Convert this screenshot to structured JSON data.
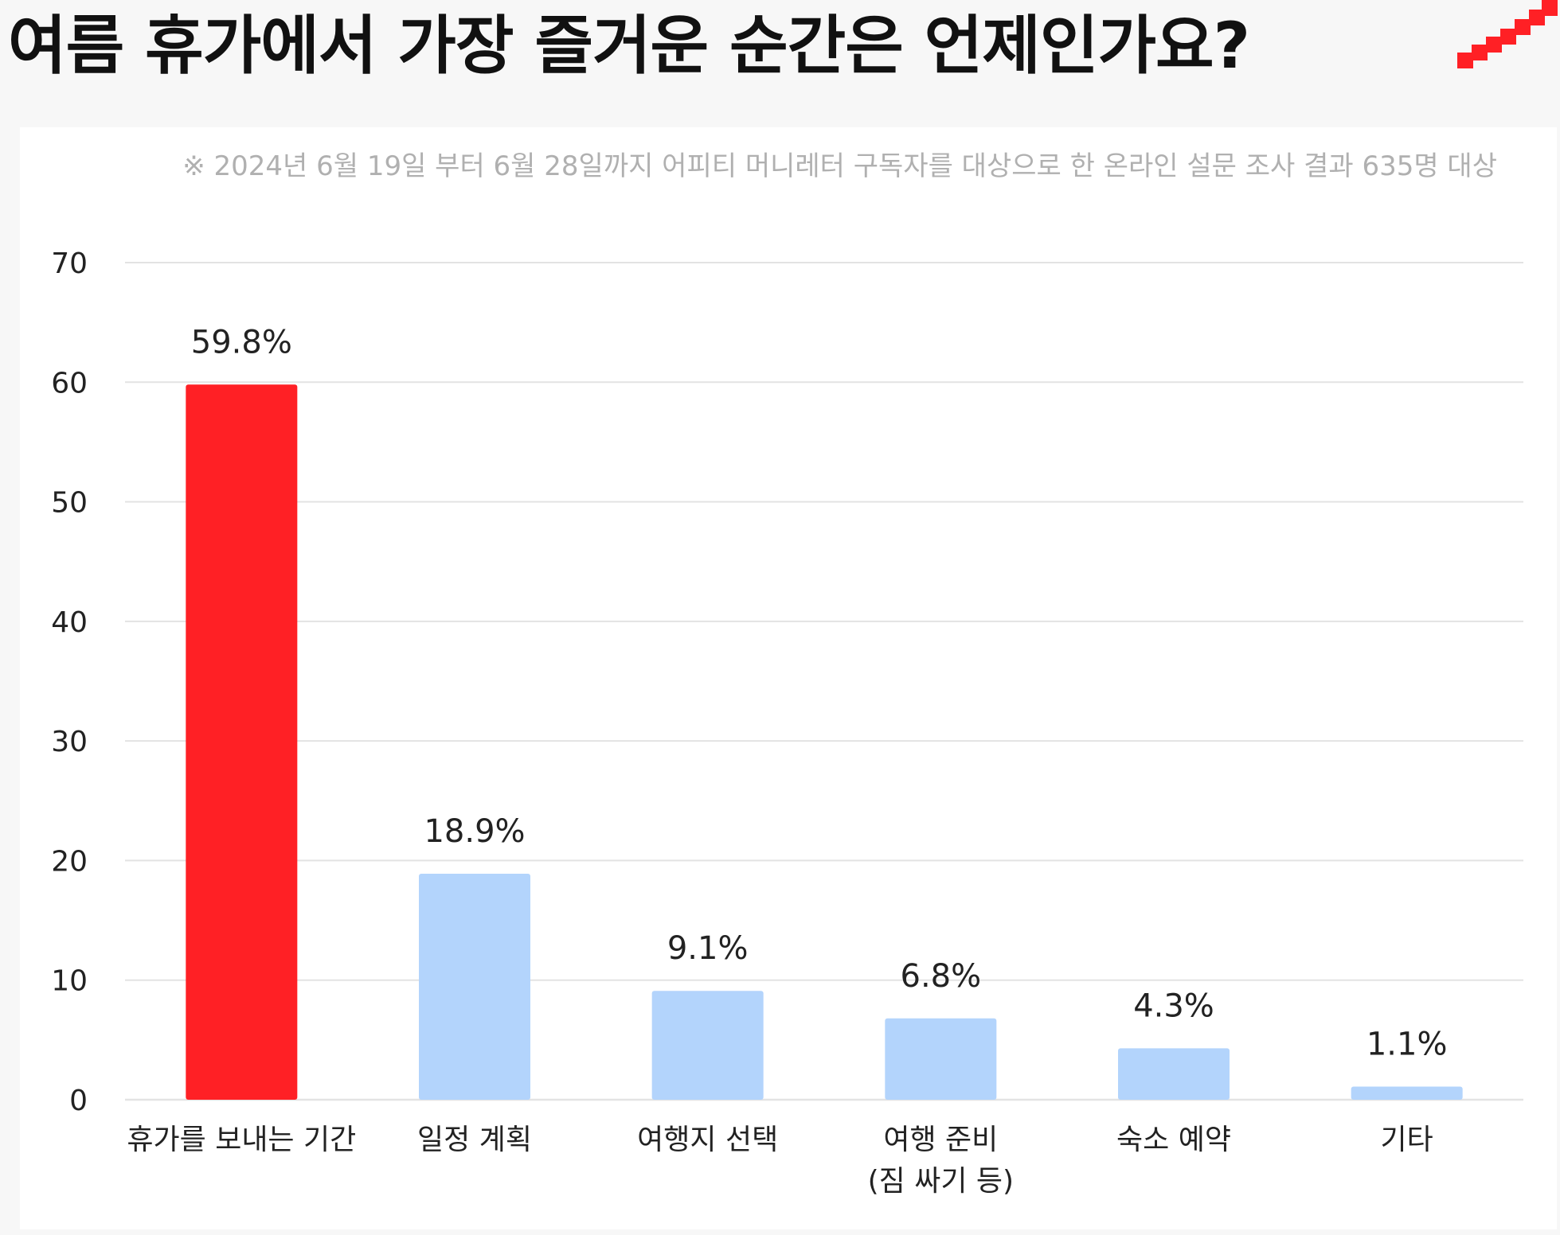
{
  "header": {
    "title": "여름 휴가에서 가장 즐거운 순간은 언제인가요?"
  },
  "colors": {
    "accent": "#ff2025",
    "bar_default": "#b3d4fc",
    "grid": "#e3e3e3",
    "note_text": "#b0b0b0"
  },
  "chart_data": {
    "type": "bar",
    "title": "여름 휴가에서 가장 즐거운 순간은 언제인가요?",
    "note": "※ 2024년 6월 19일 부터 6월 28일까지 어피티 머니레터 구독자를 대상으로 한 온라인 설문 조사 결과 635명 대상",
    "categories": [
      [
        "휴가를 보내는 기간"
      ],
      [
        "일정 계획"
      ],
      [
        "여행지 선택"
      ],
      [
        "여행 준비",
        "(짐 싸기 등)"
      ],
      [
        "숙소 예약"
      ],
      [
        "기타"
      ]
    ],
    "values": [
      59.8,
      18.9,
      9.1,
      6.8,
      4.3,
      1.1
    ],
    "data_labels": [
      "59.8%",
      "18.9%",
      "9.1%",
      "6.8%",
      "4.3%",
      "1.1%"
    ],
    "highlight_index": 0,
    "ylim": [
      0,
      70
    ],
    "yticks": [
      0,
      10,
      20,
      30,
      40,
      50,
      60,
      70
    ],
    "ytick_labels": [
      "0",
      "10",
      "20",
      "30",
      "40",
      "50",
      "60",
      "70"
    ],
    "grid": true,
    "legend": "none"
  }
}
